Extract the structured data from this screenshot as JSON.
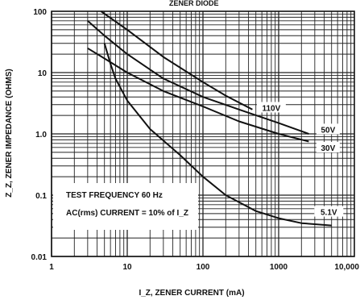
{
  "header_text": "ZENER DIODE",
  "chart_data": {
    "type": "line",
    "title": "",
    "xlabel": "I_Z, ZENER CURRENT (mA)",
    "ylabel": "Z_Z, ZENER IMPEDANCE (OHMS)",
    "x_scale": "log",
    "y_scale": "log",
    "xlim": [
      1,
      10000
    ],
    "ylim": [
      0.01,
      100
    ],
    "grid": true,
    "x_ticks": [
      {
        "value": 1,
        "label": "1"
      },
      {
        "value": 10,
        "label": "10"
      },
      {
        "value": 100,
        "label": "100"
      },
      {
        "value": 1000,
        "label": "1000"
      },
      {
        "value": 10000,
        "label": "10,000"
      }
    ],
    "y_ticks": [
      {
        "value": 0.01,
        "label": "0.01"
      },
      {
        "value": 0.1,
        "label": "0.1"
      },
      {
        "value": 1,
        "label": "1.0"
      },
      {
        "value": 10,
        "label": "10"
      },
      {
        "value": 100,
        "label": "100"
      }
    ],
    "series": [
      {
        "name": "110V",
        "x": [
          4.5,
          10,
          30,
          100,
          200,
          450
        ],
        "y": [
          100,
          50,
          18,
          7,
          4.2,
          2.5
        ],
        "label_at": [
          800,
          2.6
        ]
      },
      {
        "name": "50V",
        "x": [
          3,
          5,
          10,
          30,
          100,
          300,
          1000,
          2500
        ],
        "y": [
          70,
          40,
          20,
          8,
          4,
          2.5,
          1.5,
          1.0
        ],
        "label_at": [
          4500,
          1.15
        ]
      },
      {
        "name": "30V",
        "x": [
          3,
          5,
          10,
          30,
          100,
          300,
          1000,
          2500
        ],
        "y": [
          25,
          17,
          10,
          5,
          2.8,
          1.6,
          1.0,
          0.75
        ],
        "label_at": [
          4500,
          0.58
        ]
      },
      {
        "name": "5.1V",
        "x": [
          5,
          6,
          7,
          10,
          20,
          50,
          100,
          200,
          500,
          1000,
          2000,
          5000
        ],
        "y": [
          30,
          14,
          8,
          3.5,
          1.2,
          0.45,
          0.2,
          0.1,
          0.055,
          0.042,
          0.035,
          0.032
        ],
        "label_at": [
          4600,
          0.052
        ]
      }
    ],
    "annotations": [
      "TEST FREQUENCY 60 Hz",
      "AC(rms) CURRENT = 10% of I_Z"
    ]
  }
}
